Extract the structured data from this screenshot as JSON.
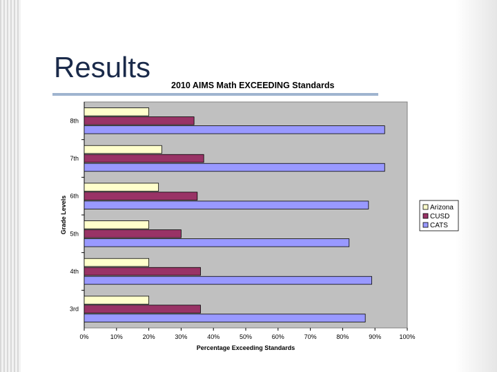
{
  "slide": {
    "title": "Results"
  },
  "colors": {
    "plot_background": "#c0c0c0",
    "grid": "#808080"
  },
  "chart_data": {
    "type": "bar",
    "orientation": "horizontal",
    "title": "2010 AIMS Math EXCEEDING Standards",
    "xlabel": "Percentage Exceeding Standards",
    "ylabel": "Grade Levels",
    "categories": [
      "8th",
      "7th",
      "6th",
      "5th",
      "4th",
      "3rd"
    ],
    "xlim": [
      0,
      100
    ],
    "x_ticks": [
      "0%",
      "10%",
      "20%",
      "30%",
      "40%",
      "50%",
      "60%",
      "70%",
      "80%",
      "90%",
      "100%"
    ],
    "grid": false,
    "legend_position": "right",
    "series": [
      {
        "name": "Arizona",
        "color": "#ffffcc",
        "values": [
          20,
          24,
          23,
          20,
          20,
          20
        ]
      },
      {
        "name": "CUSD",
        "color": "#993366",
        "values": [
          34,
          37,
          35,
          30,
          36,
          36
        ]
      },
      {
        "name": "CATS",
        "color": "#9999ff",
        "values": [
          93,
          93,
          88,
          82,
          89,
          87
        ]
      }
    ]
  }
}
